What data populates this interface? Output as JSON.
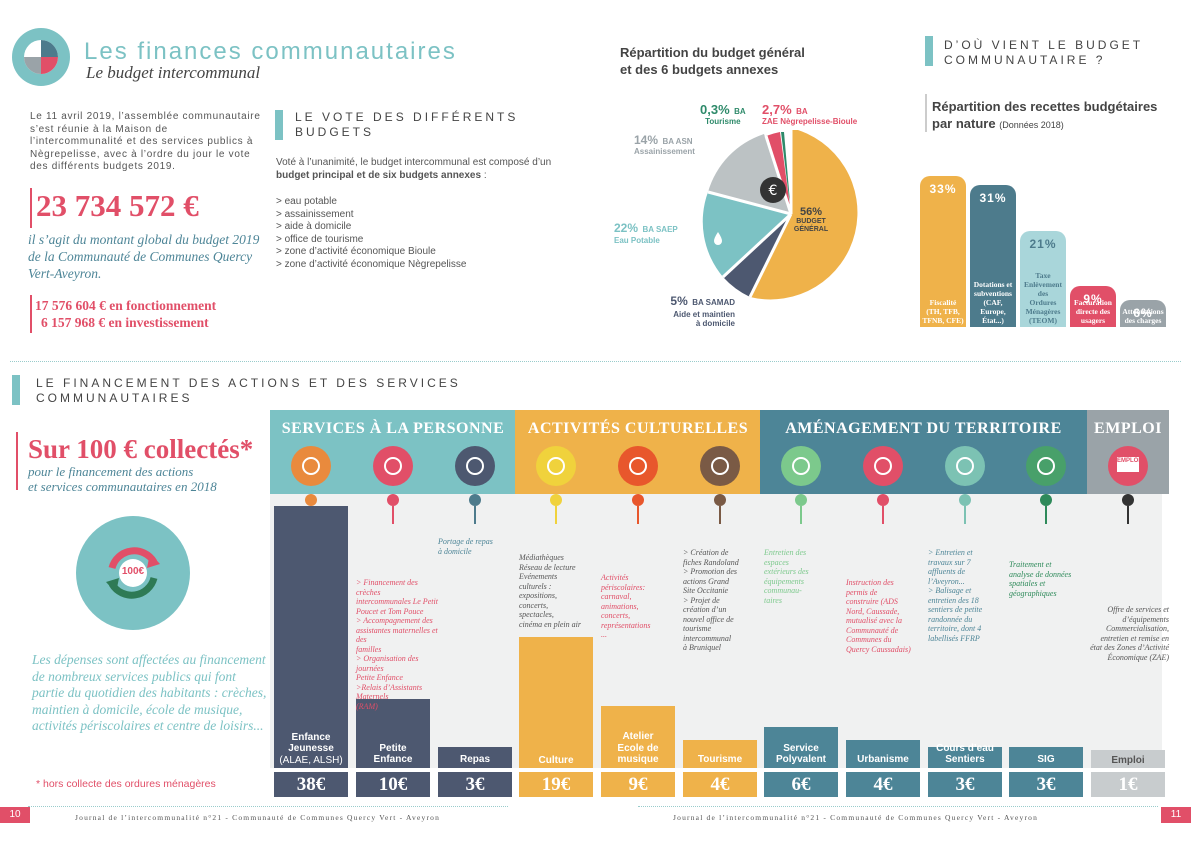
{
  "header": {
    "title": "Les finances communautaires",
    "subtitle": "Le budget intercommunal"
  },
  "intro": {
    "text": "Le 11 avril 2019, l’assemblée communautaire s’est réunie à la Maison de l’intercommunalité et des services publics à Nègrepelisse, avec à l’ordre du jour le vote des différents budgets 2019.",
    "amount": "23 734 572 €",
    "amount_desc": "il s’agit du montant global du budget 2019 de la Communauté de Communes Quercy Vert-Aveyron.",
    "fonctionnement": "17 576 604 € en fonctionnement",
    "investissement": "6 157 968 € en investissement"
  },
  "vote": {
    "title": "LE VOTE DES DIFFÉRENTS BUDGETS",
    "text_pre": "Voté à l’unanimité, le budget intercommunal est composé d’un ",
    "text_bold": "budget principal et de six budgets annexes",
    "text_post": " :",
    "items": [
      "> eau potable",
      "> assainissement",
      "> aide  à  domicile",
      "> office  de tourisme",
      "> zone d’activité économique Bioule",
      "> zone d’activité économique Nègrepelisse"
    ]
  },
  "pie": {
    "title_l1": "Répartition du budget général",
    "title_l2": "et des 6 budgets annexes",
    "labels": {
      "tourisme_pct": "0,3%",
      "tourisme_ba": "BA",
      "tourisme_name": "Tourisme",
      "zae_pct": "2,7%",
      "zae_ba": "BA",
      "zae_name": "ZAE Nègrepelisse-Bioule",
      "asn_pct": "14%",
      "asn_ba": "BA ASN",
      "asn_name": "Assainissement",
      "saep_pct": "22%",
      "saep_ba": "BA SAEP",
      "saep_name": "Eau Potable",
      "samad_pct": "5%",
      "samad_ba": "BA SAMAD",
      "samad_name1": "Aide et maintien",
      "samad_name2": "à domicile",
      "bg_pct": "56%",
      "bg_name1": "BUDGET",
      "bg_name2": "GÉNÉRAL"
    }
  },
  "recettes": {
    "section_l1": "D’OÙ VIENT LE BUDGET",
    "section_l2": "COMMUNAUTAIRE ?",
    "title_l1": "Répartition des recettes budgétaires",
    "title_l2": "par nature",
    "note": "(Données 2018)",
    "bars": [
      {
        "pct": "33%",
        "value": 33,
        "color": "#efb24a",
        "lines": [
          "Fiscalité",
          "(TH, TFB,",
          "TFNB, CFE)"
        ]
      },
      {
        "pct": "31%",
        "value": 31,
        "color": "#4d7b8c",
        "lines": [
          "Dotations et",
          "subventions",
          "(CAF, Europe,",
          "État...)"
        ]
      },
      {
        "pct": "21%",
        "value": 21,
        "color": "#a9d6da",
        "lines": [
          "Taxe",
          "Enlèvement",
          "des",
          "Ordures",
          "Ménagères",
          "(TEOM)"
        ]
      },
      {
        "pct": "9%",
        "value": 9,
        "color": "#e14f68",
        "lines": [
          "Facturation",
          "directe des",
          "usagers"
        ]
      },
      {
        "pct": "6%",
        "value": 6,
        "color": "#9aa3a8",
        "lines": [
          "Atténuations",
          "des charges"
        ]
      }
    ]
  },
  "financement": {
    "section_l1": "LE FINANCEMENT DES ACTIONS ET DES SERVICES",
    "section_l2": "COMMUNAUTAIRES",
    "big": "Sur 100 € collectés*",
    "big_sub_l1": "pour le financement des actions",
    "big_sub_l2": "et services communautaires en 2018",
    "circle": "100€",
    "desc": "Les dépenses sont affectées au financement de nombreux services publics qui font partie du quotidien des habitants : crèches, maintien à domicile, école de musique, activités périscolaires et centre de loisirs...",
    "footnote": "* hors collecte des ordures ménagères"
  },
  "chart_data": {
    "type": "bar",
    "title": "",
    "ylim": [
      0,
      40
    ],
    "groups": [
      {
        "name": "SERVICES À LA PERSONNE",
        "color": "#7cc2c4",
        "start": 0,
        "end": 3
      },
      {
        "name": "ACTIVITÉS CULTURELLES",
        "color": "#efb24a",
        "start": 3,
        "end": 6
      },
      {
        "name": "AMÉNAGEMENT DU TERRITOIRE",
        "color": "#4d8597",
        "start": 6,
        "end": 10
      },
      {
        "name": "EMPLOI",
        "color": "#9aa3a8",
        "start": 10,
        "end": 11
      }
    ],
    "categories": [
      "Enfance Jeunesse (ALAE, ALSH)",
      "Petite Enfance",
      "Repas",
      "Culture",
      "Atelier Ecole de musique",
      "Tourisme",
      "Service Polyvalent",
      "Urbanisme",
      "Cours d’eau Sentiers",
      "SIG",
      "Emploi"
    ],
    "values": [
      38,
      10,
      3,
      19,
      9,
      4,
      6,
      4,
      3,
      3,
      1
    ],
    "value_labels": [
      "38€",
      "10€",
      "3€",
      "19€",
      "9€",
      "4€",
      "6€",
      "4€",
      "3€",
      "3€",
      "1€"
    ],
    "cat_lines": [
      [
        "Enfance",
        "Jeunesse",
        "(ALAE, ALSH)"
      ],
      [
        "Petite",
        "Enfance"
      ],
      [
        "Repas"
      ],
      [
        "Culture"
      ],
      [
        "Atelier",
        "Ecole de",
        "musique"
      ],
      [
        "Tourisme"
      ],
      [
        "Service",
        "Polyvalent"
      ],
      [
        "Urbanisme"
      ],
      [
        "Cours d’eau",
        "Sentiers"
      ],
      [
        "SIG"
      ],
      [
        "Emploi"
      ]
    ],
    "bar_colors": [
      "#4d5870",
      "#4d5870",
      "#4d5870",
      "#efb24a",
      "#efb24a",
      "#efb24a",
      "#4d8597",
      "#4d8597",
      "#4d8597",
      "#4d8597",
      "#c8ccce"
    ],
    "icon_colors": [
      "#e98a3d",
      "#e14f68",
      "#4d5870",
      "#f0d23c",
      "#e8572c",
      "#7a5a45",
      "#7cc98c",
      "#e14f68",
      "#7cc2b3",
      "#48a06a",
      "#e14f68"
    ],
    "dot_colors": [
      "#e98a3d",
      "#e14f68",
      "#4d7b8c",
      "#f0d23c",
      "#e8572c",
      "#7a5a45",
      "#7cc98c",
      "#e14f68",
      "#7cc2b3",
      "#2e8a5a",
      "#333333"
    ],
    "icons": [
      "children-icon",
      "mother-child-icon",
      "meal-delivery-icon",
      "glasses-icon",
      "eye-icon",
      "house-icon",
      "recycle-icon",
      "compass-icon",
      "wave-icon",
      "map-icon",
      "emploi-screen-icon"
    ],
    "emploi_icon_text": "EMPLOI",
    "annotations": [
      [],
      [
        "> Financement des crèches",
        "intercommunales Le Petit",
        "Poucet et Tom Pouce",
        "> Accompagnement des",
        "assistantes maternelles et des",
        "familles",
        "> Organisation des journées",
        "Petite Enfance",
        ">Relais d’Assistants Maternels",
        "(RAM)"
      ],
      [
        "Portage de repas",
        "à domicile"
      ],
      [
        "Médiathèques",
        "Réseau de lecture",
        "Evénements",
        "culturels :",
        "expositions,",
        "concerts,",
        "spectacles,",
        "cinéma en plein air"
      ],
      [
        "Activités",
        "périscolaires:",
        "carnaval,",
        "animations,",
        "concerts,",
        "représentations",
        "..."
      ],
      [
        "> Création de",
        "fiches Randoland",
        "> Promotion des",
        "actions Grand",
        "Site Occitanie",
        "> Projet de",
        "création d’un",
        "nouvel office de",
        "tourisme",
        "intercommunal",
        "à Bruniquel"
      ],
      [
        "Entretien des",
        "espaces",
        "extérieurs des",
        "équipements",
        "communau-",
        "taires"
      ],
      [
        "Instruction des",
        "permis de",
        "construire (ADS",
        "Nord, Caussade,",
        "mutualisé avec la",
        "Communauté de",
        "Communes du",
        "Quercy Caussadais)"
      ],
      [
        "> Entretien et",
        "travaux sur 7",
        "affluents de",
        "l’Aveyron...",
        "> Balisage et",
        "entretien des 18",
        "sentiers de petite",
        "randonnée du",
        "territoire, dont 4",
        "labellisés FFRP"
      ],
      [
        "Traitement et",
        "analyse de données",
        "spatiales et",
        "géographiques"
      ],
      [
        "Offre de services et",
        "d’équipements",
        "Commercialisation,",
        "entretien et remise en",
        "état des Zones d’Activité",
        "Économique (ZAE)"
      ]
    ],
    "annotation_colors": [
      "#555",
      "#e14f68",
      "#4d8597",
      "#555",
      "#e14f68",
      "#555",
      "#7cc98c",
      "#e14f68",
      "#4d8597",
      "#2e8a5a",
      "#555"
    ]
  },
  "footer": {
    "page_left": "10",
    "page_right": "11",
    "journal": "Journal de l’intercommunalité n°21 - Communauté de Communes Quercy Vert - Aveyron"
  }
}
